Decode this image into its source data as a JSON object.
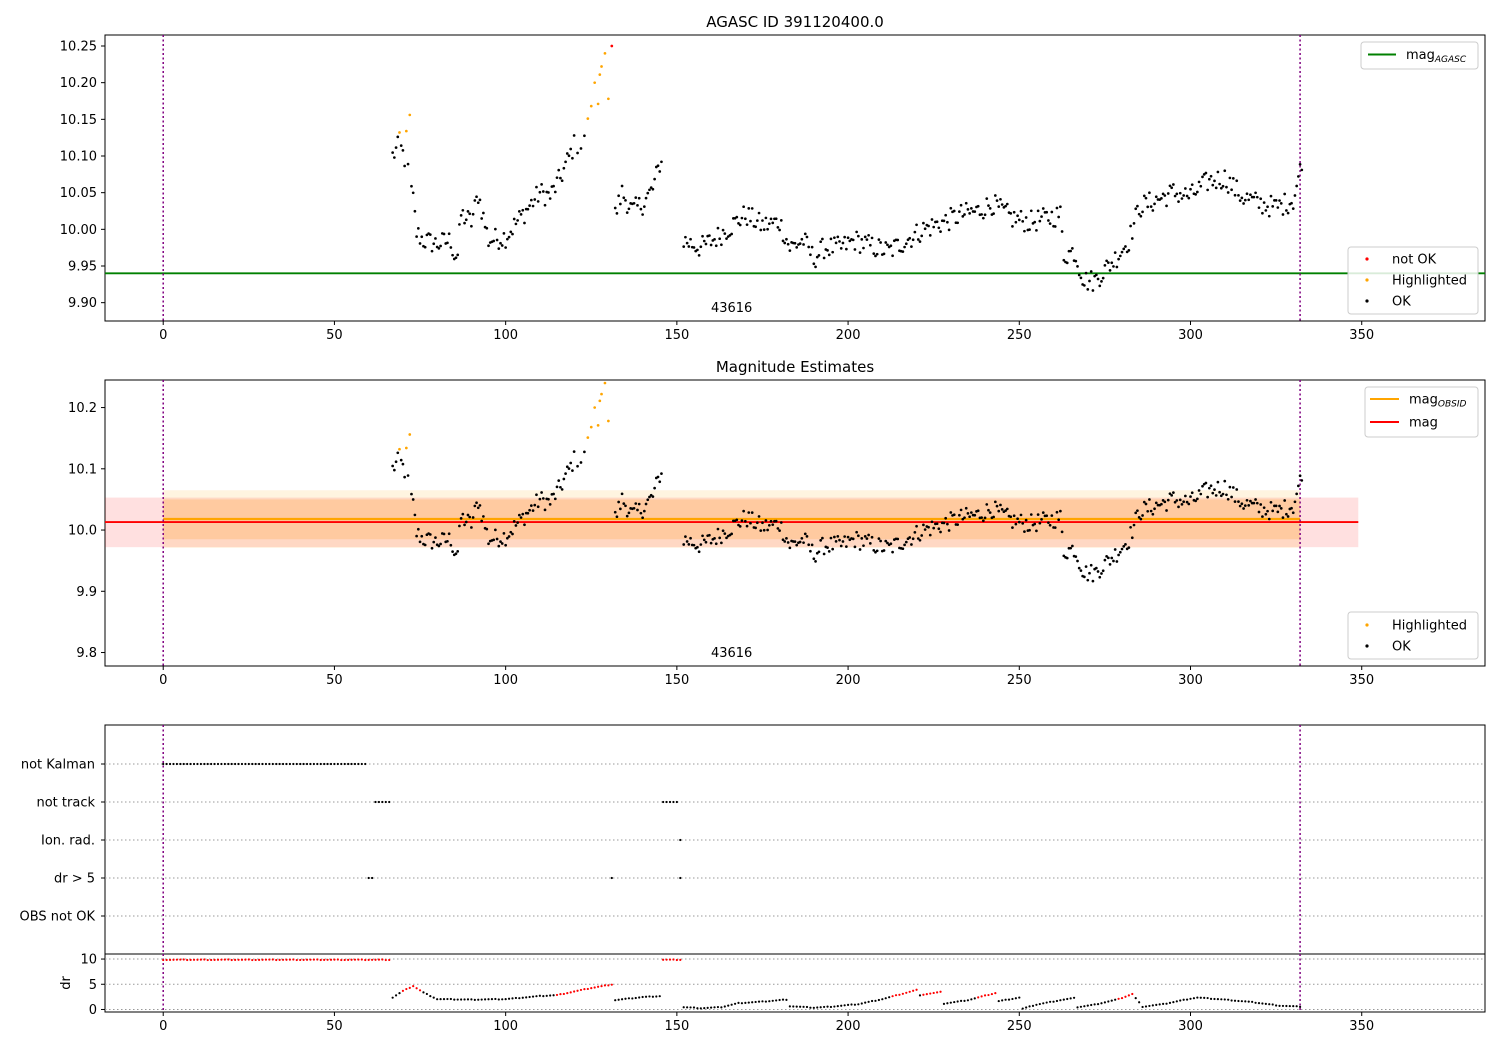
{
  "chart_data": [
    {
      "type": "scatter",
      "title": "AGASC ID 391120400.0",
      "xlim": [
        -17,
        386
      ],
      "ylim": [
        9.875,
        10.265
      ],
      "xticks": [
        0,
        50,
        100,
        150,
        200,
        250,
        300,
        350
      ],
      "yticks": [
        9.9,
        9.95,
        10.0,
        10.05,
        10.1,
        10.15,
        10.2,
        10.25
      ],
      "ytick_labels": [
        "9.90",
        "9.95",
        "10.00",
        "10.05",
        "10.10",
        "10.15",
        "10.20",
        "10.25"
      ],
      "vlines": [
        0,
        332
      ],
      "mag_agasc": 9.94,
      "mag_agasc_label_base": "mag",
      "mag_agasc_label_sub": "AGASC",
      "obsid_label": "43616",
      "obsid_label_x": 166,
      "legend_point": [
        "not OK",
        "Highlighted",
        "OK"
      ],
      "colors": {
        "ok": "#000000",
        "highlighted": "#ffa500",
        "not_ok": "#ff0000",
        "agasc": "#008000",
        "vline": "#800080"
      },
      "highlighted": [
        [
          69,
          10.132
        ],
        [
          71,
          10.134
        ],
        [
          72,
          10.156
        ],
        [
          124,
          10.151
        ],
        [
          125,
          10.168
        ],
        [
          126,
          10.2
        ],
        [
          127,
          10.171
        ],
        [
          127.5,
          10.211
        ],
        [
          128,
          10.222
        ],
        [
          129,
          10.24
        ],
        [
          130,
          10.178
        ]
      ],
      "not_ok": [
        [
          131,
          10.25
        ]
      ]
    },
    {
      "type": "scatter",
      "title": "Magnitude Estimates",
      "xlim": [
        -17,
        386
      ],
      "ylim": [
        9.778,
        10.245
      ],
      "xticks": [
        0,
        50,
        100,
        150,
        200,
        250,
        300,
        350
      ],
      "yticks": [
        9.8,
        9.9,
        10.0,
        10.1,
        10.2
      ],
      "ytick_labels": [
        "9.8",
        "9.9",
        "10.0",
        "10.1",
        "10.2"
      ],
      "vlines": [
        0,
        332
      ],
      "mag_obsid": 10.018,
      "mag_obsid_band_inner": [
        9.985,
        10.05
      ],
      "mag_obsid_band_outer": [
        9.971,
        10.065
      ],
      "mag_obsid_x": [
        0,
        332
      ],
      "mag": 10.013,
      "mag_band": [
        9.972,
        10.053
      ],
      "mag_x": [
        -17,
        349
      ],
      "legend_lines": [
        {
          "label_base": "mag",
          "label_sub": "OBSID",
          "color": "#ffa500"
        },
        {
          "label_base": "mag",
          "label_sub": "",
          "color": "#ff0000"
        }
      ],
      "legend_point": [
        "Highlighted",
        "OK"
      ],
      "obsid_label": "43616",
      "obsid_label_x": 166,
      "highlighted": [
        [
          69,
          10.132
        ],
        [
          71,
          10.134
        ],
        [
          72,
          10.156
        ],
        [
          124,
          10.151
        ],
        [
          125,
          10.168
        ],
        [
          126,
          10.2
        ],
        [
          127,
          10.171
        ],
        [
          127.5,
          10.211
        ],
        [
          128,
          10.222
        ],
        [
          129,
          10.24
        ],
        [
          130,
          10.178
        ]
      ]
    },
    {
      "type": "scatter",
      "xlim": [
        -17,
        386
      ],
      "flag_labels": [
        "not Kalman",
        "not track",
        "Ion. rad.",
        "dr > 5",
        "OBS not OK"
      ],
      "flag_segments": [
        {
          "row": 0,
          "ranges": [
            [
              0,
              59
            ]
          ]
        },
        {
          "row": 1,
          "ranges": [
            [
              62,
              66
            ],
            [
              146,
              150
            ]
          ]
        },
        {
          "row": 2,
          "ranges": [
            [
              151,
              151
            ]
          ]
        },
        {
          "row": 3,
          "ranges": [
            [
              60,
              61
            ],
            [
              131,
              131
            ],
            [
              151,
              151
            ]
          ]
        },
        {
          "row": 4,
          "ranges": []
        }
      ],
      "dr_ylabel": "dr",
      "dr_ylim": [
        -0.5,
        11
      ],
      "dr_yticks": [
        0,
        5,
        10
      ],
      "dr_xticks": [
        0,
        50,
        100,
        150,
        200,
        250,
        300,
        350
      ],
      "dr_red_ranges": [
        [
          0,
          66
        ],
        [
          146,
          151
        ],
        [
          70,
          75
        ],
        [
          115,
          131
        ],
        [
          213,
          220
        ],
        [
          222,
          227
        ],
        [
          238,
          243
        ],
        [
          279,
          283
        ]
      ],
      "dr_profile": [
        [
          0,
          9.8
        ],
        [
          66,
          9.8
        ],
        [
          67,
          2.3
        ],
        [
          70,
          3.6
        ],
        [
          73,
          4.6
        ],
        [
          76,
          3.3
        ],
        [
          80,
          2.0
        ],
        [
          90,
          1.9
        ],
        [
          100,
          2.0
        ],
        [
          110,
          2.6
        ],
        [
          115,
          2.8
        ],
        [
          120,
          3.5
        ],
        [
          125,
          4.2
        ],
        [
          131,
          4.9
        ],
        [
          132,
          1.8
        ],
        [
          140,
          2.4
        ],
        [
          145,
          2.6
        ],
        [
          146,
          9.8
        ],
        [
          151,
          9.8
        ],
        [
          152,
          0.4
        ],
        [
          157,
          0.2
        ],
        [
          163,
          0.4
        ],
        [
          168,
          1.2
        ],
        [
          175,
          1.5
        ],
        [
          182,
          1.9
        ],
        [
          183,
          0.6
        ],
        [
          190,
          0.3
        ],
        [
          195,
          0.5
        ],
        [
          203,
          1.0
        ],
        [
          210,
          2.0
        ],
        [
          215,
          2.9
        ],
        [
          220,
          3.8
        ],
        [
          221,
          2.8
        ],
        [
          227,
          3.4
        ],
        [
          228,
          1.1
        ],
        [
          235,
          1.8
        ],
        [
          243,
          3.2
        ],
        [
          244,
          1.6
        ],
        [
          250,
          2.3
        ],
        [
          251,
          0.1
        ],
        [
          255,
          0.9
        ],
        [
          262,
          1.8
        ],
        [
          266,
          2.2
        ],
        [
          267,
          0.4
        ],
        [
          272,
          0.9
        ],
        [
          279,
          2.0
        ],
        [
          283,
          3.0
        ],
        [
          286,
          0.5
        ],
        [
          292,
          1.0
        ],
        [
          300,
          2.1
        ],
        [
          302,
          2.3
        ],
        [
          310,
          1.9
        ],
        [
          318,
          1.4
        ],
        [
          326,
          0.7
        ],
        [
          332,
          0.5
        ]
      ]
    }
  ]
}
